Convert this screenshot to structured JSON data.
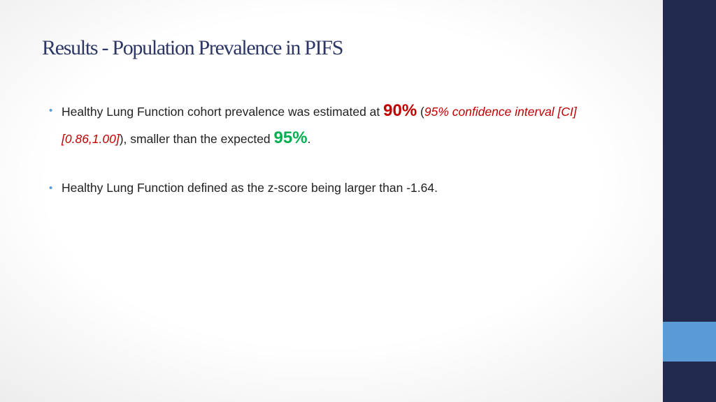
{
  "header": {
    "title": "Results - Population Prevalence in PIFS"
  },
  "bullets": [
    {
      "segments": [
        {
          "text": "Healthy Lung Function cohort prevalence was estimated at ",
          "style": "plain"
        },
        {
          "text": "90%",
          "style": "highlight-red"
        },
        {
          "text": " (",
          "style": "plain"
        },
        {
          "text": "95% confidence interval [CI] [0.86,1.00]",
          "style": "italic-red"
        },
        {
          "text": "), smaller than the expected ",
          "style": "plain"
        },
        {
          "text": "95%",
          "style": "highlight-green"
        },
        {
          "text": ".",
          "style": "plain"
        }
      ]
    },
    {
      "segments": [
        {
          "text": "Healthy Lung Function defined as the z-score being larger than -1.64.",
          "style": "plain"
        }
      ]
    }
  ]
}
